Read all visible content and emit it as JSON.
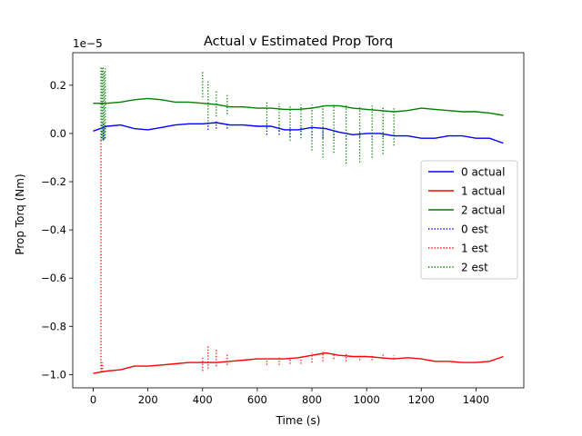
{
  "chart_data": {
    "type": "line",
    "title": "Actual v Estimated Prop Torq",
    "xlabel": "Time (s)",
    "ylabel": "Prop Torq (Nm)",
    "offset_text": "1e−5",
    "xlim": [
      -75,
      1575
    ],
    "ylim": [
      -1.055,
      0.335
    ],
    "y_scale_note": "values in units of 1e-5",
    "xticks": [
      0,
      200,
      400,
      600,
      800,
      1000,
      1200,
      1400
    ],
    "xtick_labels": [
      "0",
      "200",
      "400",
      "600",
      "800",
      "1000",
      "1200",
      "1400"
    ],
    "yticks": [
      0.2,
      0.0,
      -0.2,
      -0.4,
      -0.6,
      -0.8,
      -1.0
    ],
    "ytick_labels": [
      "0.2",
      "0.0",
      "−0.2",
      "−0.4",
      "−0.6",
      "−0.8",
      "−1.0"
    ],
    "grid": false,
    "legend_position": "center-right",
    "series": [
      {
        "name": "0 actual",
        "color": "#0000ff",
        "style": "solid",
        "x": [
          0,
          50,
          100,
          150,
          200,
          250,
          300,
          350,
          400,
          450,
          500,
          550,
          600,
          650,
          700,
          750,
          800,
          850,
          900,
          950,
          1000,
          1050,
          1100,
          1150,
          1200,
          1250,
          1300,
          1350,
          1400,
          1450,
          1500
        ],
        "y": [
          0.01,
          0.03,
          0.035,
          0.02,
          0.015,
          0.025,
          0.035,
          0.04,
          0.04,
          0.045,
          0.035,
          0.035,
          0.03,
          0.03,
          0.015,
          0.015,
          0.025,
          0.02,
          0.005,
          -0.005,
          0.0,
          0.0,
          -0.01,
          -0.01,
          -0.02,
          -0.02,
          -0.01,
          -0.01,
          -0.02,
          -0.02,
          -0.04
        ]
      },
      {
        "name": "1 actual",
        "color": "#ff0000",
        "style": "solid",
        "x": [
          0,
          50,
          100,
          150,
          200,
          250,
          300,
          350,
          400,
          450,
          500,
          550,
          600,
          650,
          700,
          750,
          800,
          850,
          900,
          950,
          1000,
          1050,
          1100,
          1150,
          1200,
          1250,
          1300,
          1350,
          1400,
          1450,
          1500
        ],
        "y": [
          -0.995,
          -0.985,
          -0.98,
          -0.965,
          -0.965,
          -0.96,
          -0.955,
          -0.95,
          -0.95,
          -0.95,
          -0.945,
          -0.94,
          -0.935,
          -0.935,
          -0.935,
          -0.93,
          -0.92,
          -0.91,
          -0.92,
          -0.925,
          -0.925,
          -0.93,
          -0.935,
          -0.93,
          -0.935,
          -0.945,
          -0.945,
          -0.95,
          -0.95,
          -0.945,
          -0.925
        ]
      },
      {
        "name": "2 actual",
        "color": "#008000",
        "style": "solid",
        "x": [
          0,
          50,
          100,
          150,
          200,
          250,
          300,
          350,
          400,
          450,
          500,
          550,
          600,
          650,
          700,
          750,
          800,
          850,
          900,
          950,
          1000,
          1050,
          1100,
          1150,
          1200,
          1250,
          1300,
          1350,
          1400,
          1450,
          1500
        ],
        "y": [
          0.125,
          0.125,
          0.13,
          0.14,
          0.145,
          0.14,
          0.13,
          0.13,
          0.125,
          0.12,
          0.11,
          0.11,
          0.105,
          0.105,
          0.1,
          0.1,
          0.105,
          0.115,
          0.115,
          0.105,
          0.1,
          0.095,
          0.09,
          0.095,
          0.105,
          0.1,
          0.095,
          0.09,
          0.09,
          0.085,
          0.075
        ]
      },
      {
        "name": "0 est",
        "color": "#0000ff",
        "style": "dotted",
        "x": [
          30,
          36,
          42,
          420,
          450,
          490,
          635,
          680,
          720,
          760,
          800,
          840,
          880,
          925,
          975,
          1020,
          1060,
          1100
        ],
        "y_low": [
          -0.02,
          -0.025,
          -0.02,
          0.015,
          0.02,
          0.02,
          -0.005,
          -0.005,
          -0.015,
          -0.005,
          -0.02,
          -0.02,
          -0.02,
          -0.025,
          -0.015,
          -0.015,
          -0.015,
          -0.01
        ],
        "y_high": [
          0.04,
          0.04,
          0.04,
          0.05,
          0.05,
          0.045,
          0.035,
          0.035,
          0.025,
          0.03,
          0.025,
          0.015,
          0.01,
          0.005,
          0.005,
          0.0,
          0.0,
          0.005
        ]
      },
      {
        "name": "1 est",
        "color": "#ff0000",
        "style": "dotted",
        "x": [
          28,
          30,
          34,
          400,
          420,
          450,
          490,
          635,
          680,
          720,
          760,
          800,
          840,
          880,
          925,
          975,
          1020,
          1060,
          1100
        ],
        "y_low": [
          -0.99,
          -0.99,
          -0.99,
          -0.985,
          -0.975,
          -0.965,
          -0.96,
          -0.96,
          -0.96,
          -0.955,
          -0.955,
          -0.95,
          -0.945,
          -0.935,
          -0.945,
          -0.94,
          -0.94,
          -0.935,
          -0.935
        ],
        "y_high": [
          -0.02,
          -0.95,
          -0.95,
          -0.93,
          -0.875,
          -0.89,
          -0.91,
          -0.935,
          -0.93,
          -0.93,
          -0.92,
          -0.91,
          -0.905,
          -0.91,
          -0.91,
          -0.915,
          -0.915,
          -0.915,
          -0.92
        ]
      },
      {
        "name": "2 est",
        "color": "#008000",
        "style": "dotted",
        "x": [
          28,
          32,
          36,
          40,
          44,
          400,
          420,
          450,
          490,
          635,
          680,
          720,
          760,
          800,
          840,
          880,
          925,
          975,
          1020,
          1060,
          1100
        ],
        "y_low": [
          -0.03,
          -0.02,
          -0.03,
          -0.025,
          -0.02,
          0.15,
          0.05,
          0.07,
          0.08,
          0.025,
          0.01,
          -0.03,
          -0.02,
          -0.07,
          -0.1,
          -0.08,
          -0.125,
          -0.12,
          -0.1,
          -0.085,
          -0.05
        ],
        "y_high": [
          0.28,
          0.27,
          0.275,
          0.26,
          0.27,
          0.26,
          0.22,
          0.18,
          0.16,
          0.13,
          0.125,
          0.12,
          0.12,
          0.12,
          0.12,
          0.12,
          0.12,
          0.115,
          0.115,
          0.11,
          0.105
        ]
      }
    ]
  }
}
